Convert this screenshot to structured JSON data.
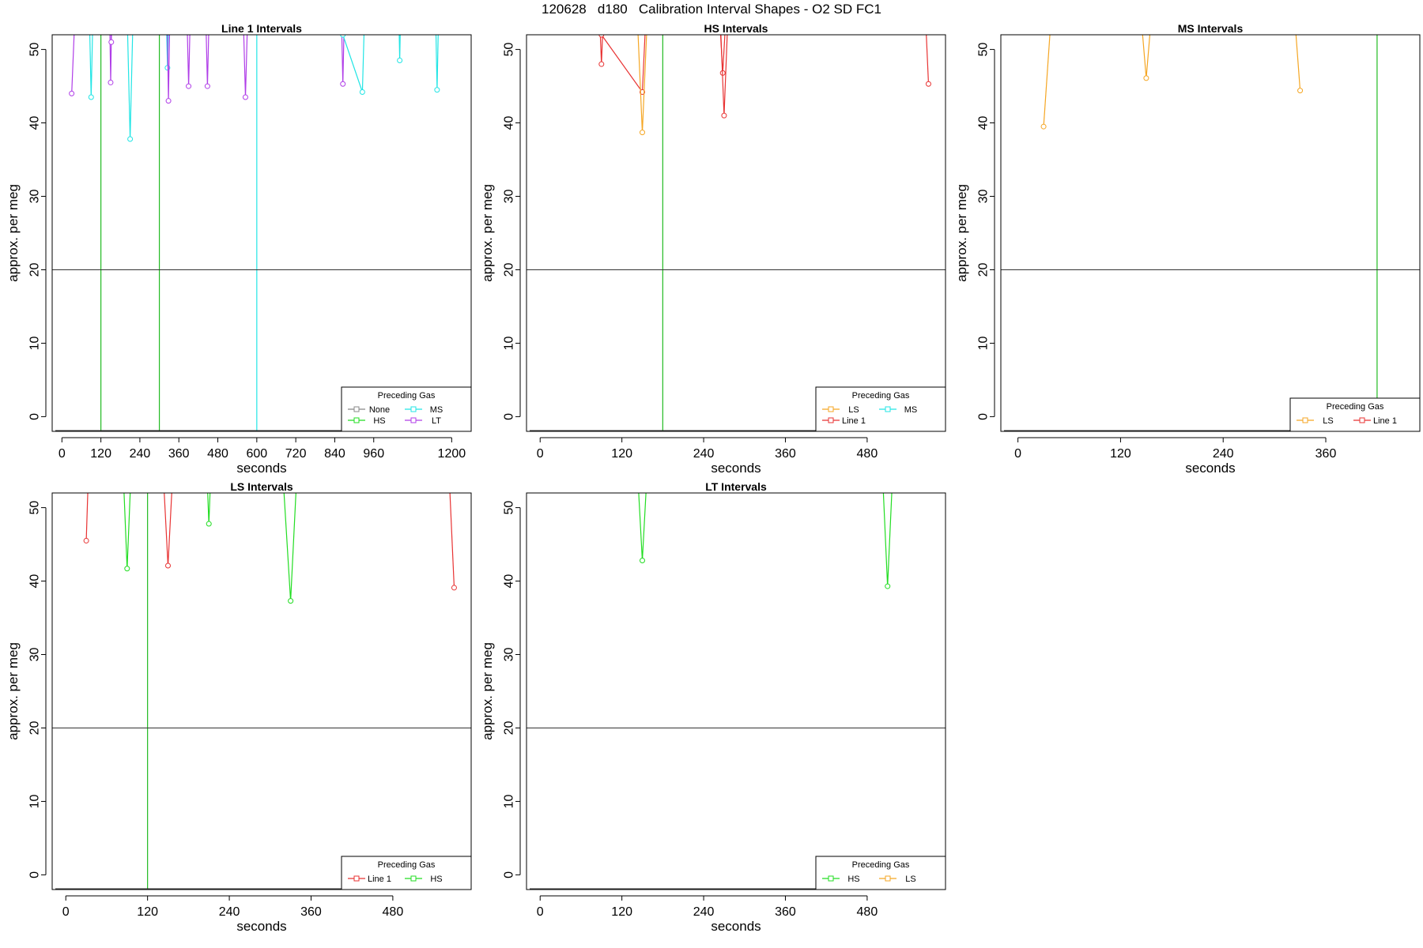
{
  "title": "120628   d180   Calibration Interval Shapes - O2 SD FC1",
  "legend_title": "Preceding Gas",
  "chart_data": [
    {
      "type": "line",
      "title": "Line 1 Intervals",
      "xlabel": "seconds",
      "ylabel": "approx. per meg",
      "xlim": [
        -30,
        1260
      ],
      "ylim": [
        -2,
        52
      ],
      "xticks": [
        0,
        120,
        240,
        360,
        480,
        600,
        720,
        840,
        960,
        1200
      ],
      "yticks": [
        0,
        10,
        20,
        30,
        40,
        50
      ],
      "hline": 20,
      "vlines": [
        {
          "x": 120,
          "color": "#22bb22"
        },
        {
          "x": 300,
          "color": "#22bb22"
        },
        {
          "x": 600,
          "color": "#22e5e5"
        }
      ],
      "legend": {
        "position": "bottom-right",
        "ncol": 2,
        "entries": [
          {
            "name": "None",
            "color": "#888888"
          },
          {
            "name": "MS",
            "color": "#22e5e5"
          },
          {
            "name": "HS",
            "color": "#22dd22"
          },
          {
            "name": "LT",
            "color": "#b03ee8"
          }
        ]
      },
      "series": [
        {
          "name": "LT",
          "color": "#b03ee8",
          "x": [
            30,
            45
          ],
          "y": [
            44,
            60
          ]
        },
        {
          "name": "MS",
          "color": "#22e5e5",
          "x": [
            82,
            90,
            98
          ],
          "y": [
            60,
            43.5,
            60
          ]
        },
        {
          "name": "LT",
          "color": "#b03ee8",
          "x": [
            145,
            150,
            155
          ],
          "y": [
            60,
            45.5,
            60
          ]
        },
        {
          "name": "LT",
          "color": "#b03ee8",
          "x": [
            148,
            152,
            156
          ],
          "y": [
            60,
            51,
            60
          ]
        },
        {
          "name": "MS",
          "color": "#22e5e5",
          "x": [
            198,
            210,
            222
          ],
          "y": [
            60,
            37.8,
            60
          ]
        },
        {
          "name": "MS",
          "color": "#22e5e5",
          "x": [
            318,
            325,
            332
          ],
          "y": [
            60,
            47.5,
            60
          ]
        },
        {
          "name": "LT",
          "color": "#b03ee8",
          "x": [
            322,
            328,
            334
          ],
          "y": [
            60,
            43,
            60
          ]
        },
        {
          "name": "LT",
          "color": "#b03ee8",
          "x": [
            382,
            390,
            398
          ],
          "y": [
            60,
            45,
            60
          ]
        },
        {
          "name": "LT",
          "color": "#b03ee8",
          "x": [
            440,
            448,
            456
          ],
          "y": [
            60,
            45,
            60
          ]
        },
        {
          "name": "LT",
          "color": "#b03ee8",
          "x": [
            555,
            565,
            575
          ],
          "y": [
            60,
            43.5,
            60
          ]
        },
        {
          "name": "LT",
          "color": "#b03ee8",
          "x": [
            858,
            865,
            872
          ],
          "y": [
            60,
            45.3,
            60
          ]
        },
        {
          "name": "MS",
          "color": "#22e5e5",
          "x": [
            865,
            925,
            935
          ],
          "y": [
            52,
            44.2,
            60
          ]
        },
        {
          "name": "MS",
          "color": "#22e5e5",
          "x": [
            1035,
            1040,
            1045
          ],
          "y": [
            60,
            48.5,
            60
          ]
        },
        {
          "name": "MS",
          "color": "#22e5e5",
          "x": [
            1148,
            1155,
            1162
          ],
          "y": [
            60,
            44.5,
            60
          ]
        }
      ]
    },
    {
      "type": "line",
      "title": "HS Intervals",
      "xlabel": "seconds",
      "ylabel": "approx. per meg",
      "xlim": [
        -20,
        595
      ],
      "ylim": [
        -2,
        52
      ],
      "xticks": [
        0,
        120,
        240,
        360,
        480
      ],
      "yticks": [
        0,
        10,
        20,
        30,
        40,
        50
      ],
      "hline": 20,
      "vlines": [
        {
          "x": 180,
          "color": "#22bb22"
        }
      ],
      "legend": {
        "position": "bottom-right",
        "ncol": 2,
        "entries": [
          {
            "name": "LS",
            "color": "#f5a623"
          },
          {
            "name": "MS",
            "color": "#22e5e5"
          },
          {
            "name": "Line 1",
            "color": "#e83333"
          }
        ]
      },
      "series": [
        {
          "name": "Line 1",
          "color": "#e83333",
          "x": [
            85,
            90,
            95
          ],
          "y": [
            60,
            48,
            60
          ]
        },
        {
          "name": "Line 1",
          "color": "#e83333",
          "x": [
            90,
            150,
            158
          ],
          "y": [
            52,
            44.2,
            60
          ]
        },
        {
          "name": "LS",
          "color": "#f5a623",
          "x": [
            140,
            150,
            160
          ],
          "y": [
            60,
            38.7,
            60
          ]
        },
        {
          "name": "Line 1",
          "color": "#e83333",
          "x": [
            260,
            268,
            276
          ],
          "y": [
            60,
            46.8,
            60
          ]
        },
        {
          "name": "Line 1",
          "color": "#e83333",
          "x": [
            262,
            270,
            278
          ],
          "y": [
            60,
            41,
            60
          ]
        },
        {
          "name": "Line 1",
          "color": "#e83333",
          "x": [
            563,
            570
          ],
          "y": [
            60,
            45.3
          ]
        }
      ]
    },
    {
      "type": "line",
      "title": "MS Intervals",
      "xlabel": "seconds",
      "ylabel": "approx. per meg",
      "xlim": [
        -20,
        470
      ],
      "ylim": [
        -2,
        52
      ],
      "xticks": [
        0,
        120,
        240,
        360
      ],
      "yticks": [
        0,
        10,
        20,
        30,
        40,
        50
      ],
      "hline": 20,
      "vlines": [
        {
          "x": 420,
          "color": "#22bb22"
        }
      ],
      "legend": {
        "position": "bottom-right",
        "ncol": 2,
        "entries": [
          {
            "name": "LS",
            "color": "#f5a623"
          },
          {
            "name": "Line 1",
            "color": "#e83333"
          }
        ]
      },
      "series": [
        {
          "name": "LS",
          "color": "#f5a623",
          "x": [
            30,
            42
          ],
          "y": [
            39.5,
            60
          ]
        },
        {
          "name": "LS",
          "color": "#f5a623",
          "x": [
            140,
            150,
            160
          ],
          "y": [
            60,
            46.1,
            60
          ]
        },
        {
          "name": "LS",
          "color": "#f5a623",
          "x": [
            320,
            330
          ],
          "y": [
            60,
            44.4
          ]
        }
      ]
    },
    {
      "type": "line",
      "title": "LS Intervals",
      "xlabel": "seconds",
      "ylabel": "approx. per meg",
      "xlim": [
        -20,
        595
      ],
      "ylim": [
        -2,
        52
      ],
      "xticks": [
        0,
        120,
        240,
        360,
        480
      ],
      "yticks": [
        0,
        10,
        20,
        30,
        40,
        50
      ],
      "hline": 20,
      "vlines": [
        {
          "x": 120,
          "color": "#22bb22"
        }
      ],
      "legend": {
        "position": "bottom-right",
        "ncol": 2,
        "entries": [
          {
            "name": "Line 1",
            "color": "#e83333"
          },
          {
            "name": "HS",
            "color": "#22dd22"
          }
        ]
      },
      "series": [
        {
          "name": "Line 1",
          "color": "#e83333",
          "x": [
            30,
            35
          ],
          "y": [
            45.5,
            60
          ]
        },
        {
          "name": "HS",
          "color": "#22dd22",
          "x": [
            82,
            90,
            98
          ],
          "y": [
            60,
            41.7,
            60
          ]
        },
        {
          "name": "Line 1",
          "color": "#e83333",
          "x": [
            140,
            150,
            160
          ],
          "y": [
            60,
            42.1,
            60
          ]
        },
        {
          "name": "HS",
          "color": "#22dd22",
          "x": [
            205,
            210,
            215
          ],
          "y": [
            60,
            47.8,
            60
          ]
        },
        {
          "name": "HS",
          "color": "#22dd22",
          "x": [
            315,
            330,
            342
          ],
          "y": [
            60,
            37.3,
            60
          ]
        },
        {
          "name": "Line 1",
          "color": "#e83333",
          "x": [
            560,
            570
          ],
          "y": [
            60,
            39.1
          ]
        }
      ]
    },
    {
      "type": "line",
      "title": "LT Intervals",
      "xlabel": "seconds",
      "ylabel": "approx. per meg",
      "xlim": [
        -20,
        595
      ],
      "ylim": [
        -2,
        52
      ],
      "xticks": [
        0,
        120,
        240,
        360,
        480
      ],
      "yticks": [
        0,
        10,
        20,
        30,
        40,
        50
      ],
      "hline": 20,
      "vlines": [],
      "legend": {
        "position": "bottom-right",
        "ncol": 2,
        "entries": [
          {
            "name": "HS",
            "color": "#22dd22"
          },
          {
            "name": "LS",
            "color": "#f5a623"
          }
        ]
      },
      "series": [
        {
          "name": "HS",
          "color": "#22dd22",
          "x": [
            140,
            150,
            160
          ],
          "y": [
            60,
            42.8,
            60
          ]
        },
        {
          "name": "HS",
          "color": "#22dd22",
          "x": [
            500,
            510,
            520
          ],
          "y": [
            60,
            39.3,
            60
          ]
        }
      ]
    }
  ]
}
